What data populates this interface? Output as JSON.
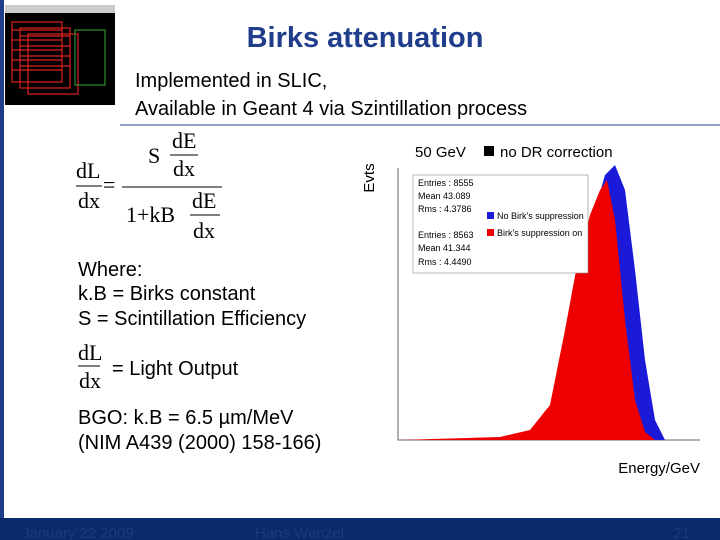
{
  "header": {
    "title": "Birks attenuation",
    "subtitle": [
      "Implemented in SLIC,",
      "Available in Geant 4 via Szintillation process"
    ]
  },
  "formula": {
    "lhs_num": "dL",
    "lhs_den": "dx",
    "equals": "=",
    "s": "S",
    "num_num": "dE",
    "num_den": "dx",
    "den_prefix": "1+kB",
    "den_num": "dE",
    "den_den": "dx"
  },
  "body": {
    "where": [
      "Where:",
      "k.B = Birks constant",
      "S   = Scintillation Efficiency"
    ],
    "light": {
      "num": "dL",
      "den": "dx",
      "text": "= Light Output"
    },
    "bgo": [
      "BGO: k.B = 6.5 µm/MeV",
      "(NIM A439 (2000) 158-166)"
    ]
  },
  "plot": {
    "y_label": "Evts",
    "x_label": "Energy/GeV",
    "caption": "50 GeV",
    "caption_note": "no DR correction",
    "stats": [
      {
        "entries": "Entries :  8555",
        "mean": "Mean    43.089",
        "rms": "Rms :   4.3786",
        "legend": "No Birk's suppression"
      },
      {
        "entries": "Entries :  8563",
        "mean": "Mean    41.344",
        "rms": "Rms :   4.4490",
        "legend": "Birk's suppression on"
      }
    ]
  },
  "footer": {
    "date": "January 22 2009",
    "author": "Hans Wenzel",
    "page": "21"
  }
}
